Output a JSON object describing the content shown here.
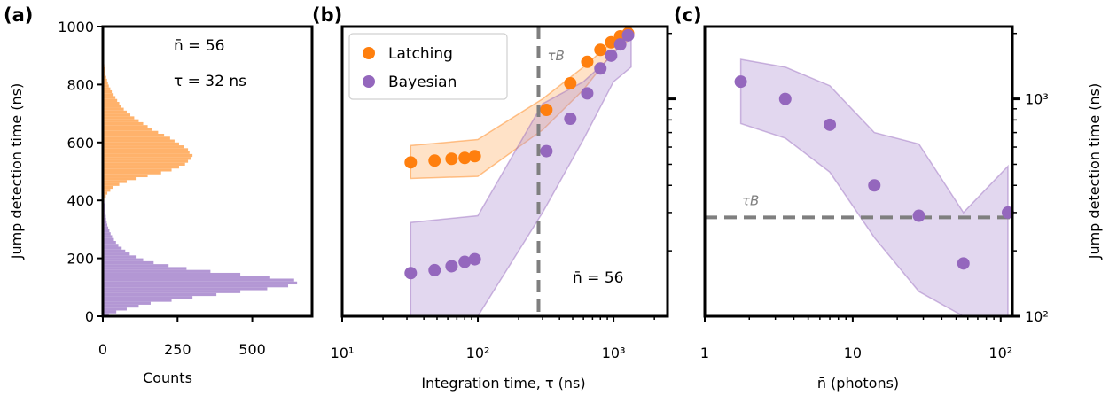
{
  "colors": {
    "latching": "#ff7f0e",
    "latching_light": "#ffb26b",
    "bayesian": "#9467bd",
    "bayesian_light": "#b397d4",
    "tau_line": "#7f7f7f",
    "axis": "#000000"
  },
  "chart_data": [
    {
      "panel": "(a)",
      "type": "histogram",
      "xlabel": "Counts",
      "ylabel": "Jump detection time (ns)",
      "xlim": [
        0,
        700
      ],
      "ylim": [
        0,
        1000
      ],
      "xticks": [
        0,
        250,
        500
      ],
      "yticks": [
        0,
        200,
        400,
        600,
        800,
        1000
      ],
      "bin_width": 10,
      "annotations": {
        "nbar": "n̄ = 56",
        "tau": "τ  = 32 ns"
      },
      "series": [
        {
          "name": "Latching",
          "bin_start": 400,
          "counts": [
            5,
            10,
            15,
            25,
            35,
            55,
            80,
            110,
            150,
            195,
            230,
            255,
            275,
            285,
            295,
            300,
            290,
            285,
            270,
            255,
            240,
            225,
            205,
            185,
            165,
            150,
            135,
            120,
            105,
            92,
            80,
            70,
            62,
            55,
            48,
            42,
            36,
            30,
            25,
            20,
            17,
            14,
            11,
            9,
            7,
            6,
            5,
            4,
            3,
            2,
            2,
            1,
            1,
            1,
            1,
            1,
            1,
            1,
            1,
            1
          ]
        },
        {
          "name": "Bayesian",
          "bin_start": 0,
          "counts": [
            20,
            45,
            80,
            120,
            160,
            230,
            300,
            380,
            460,
            550,
            620,
            650,
            640,
            560,
            460,
            360,
            280,
            220,
            170,
            135,
            110,
            90,
            75,
            63,
            52,
            44,
            37,
            31,
            26,
            22,
            18,
            15,
            13,
            11,
            10,
            9,
            8,
            7,
            6,
            5,
            4,
            3,
            3,
            2,
            2,
            1,
            1,
            1,
            1,
            1
          ]
        }
      ]
    },
    {
      "panel": "(b)",
      "type": "scatter",
      "xlabel": "Integration time, τ (ns)",
      "ylabel": "",
      "xscale": "log",
      "yscale": "log",
      "xlim": [
        10,
        2500
      ],
      "ylim": [
        100,
        2150
      ],
      "xtick_labels": [
        "10¹",
        "10²",
        "10³"
      ],
      "tau_B": 280,
      "tau_B_label": "τB",
      "annotation": "n̄ = 56",
      "legend": {
        "position": "upper-left",
        "entries": [
          "Latching",
          "Bayesian"
        ]
      },
      "series": [
        {
          "name": "Latching",
          "x": [
            32,
            48,
            64,
            80,
            95,
            320,
            480,
            640,
            800,
            960,
            1120,
            1280
          ],
          "y": [
            510,
            520,
            530,
            535,
            545,
            890,
            1180,
            1480,
            1680,
            1820,
            1940,
            2000
          ],
          "band_x": [
            32,
            100,
            300,
            600,
            1000,
            1350
          ],
          "band_low": [
            430,
            440,
            720,
            1100,
            1650,
            1900
          ],
          "band_high": [
            610,
            650,
            1000,
            1400,
            1850,
            2150
          ]
        },
        {
          "name": "Bayesian",
          "x": [
            32,
            48,
            64,
            80,
            95,
            320,
            480,
            640,
            800,
            960,
            1120,
            1280
          ],
          "y": [
            158,
            163,
            170,
            178,
            183,
            575,
            810,
            1060,
            1380,
            1580,
            1780,
            1960
          ],
          "band_x": [
            32,
            100,
            300,
            600,
            1000,
            1350
          ],
          "band_low": [
            100,
            100,
            300,
            650,
            1200,
            1400
          ],
          "band_high": [
            270,
            290,
            950,
            1200,
            1600,
            2100
          ]
        }
      ]
    },
    {
      "panel": "(c)",
      "type": "scatter",
      "xlabel": "n̄ (photons)",
      "ylabel": "Jump detection time (ns)",
      "xscale": "log",
      "yscale": "log",
      "xlim": [
        1,
        120
      ],
      "ylim": [
        100,
        2150
      ],
      "xtick_labels": [
        "1",
        "10",
        "10²"
      ],
      "ytick_labels": [
        "10²",
        "10³"
      ],
      "tau_B": 285,
      "tau_B_label": "τB",
      "series": [
        {
          "name": "Bayesian",
          "x": [
            1.75,
            3.5,
            7,
            14,
            28,
            56,
            112
          ],
          "y": [
            1200,
            1000,
            760,
            400,
            290,
            175,
            300
          ],
          "band_x": [
            1.75,
            3.5,
            7,
            14,
            28,
            56,
            112
          ],
          "band_low": [
            770,
            660,
            460,
            230,
            130,
            100,
            100
          ],
          "band_high": [
            1520,
            1400,
            1150,
            700,
            620,
            300,
            490
          ]
        }
      ]
    }
  ]
}
